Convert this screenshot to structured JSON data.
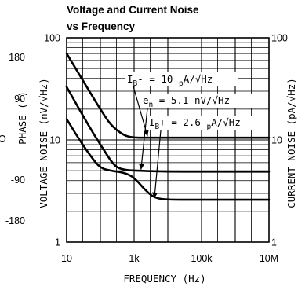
{
  "chart_data": {
    "type": "line",
    "title_line1": "Voltage and Current Noise",
    "title_line2": "vs Frequency",
    "xlabel": "FREQUENCY (Hz)",
    "ylabel_left": "VOLTAGE NOISE (nV/√Hz)",
    "ylabel_right": "CURRENT NOISE (pA/√Hz)",
    "x_scale": "log",
    "y_scale": "log",
    "xlim": [
      10,
      10000000
    ],
    "ylim": [
      1,
      100
    ],
    "grid": true,
    "x_ticks": [
      {
        "value": 10,
        "label": "10"
      },
      {
        "value": 1000,
        "label": "1k"
      },
      {
        "value": 100000,
        "label": "100k"
      },
      {
        "value": 10000000,
        "label": "10M"
      }
    ],
    "y_ticks_left": [
      {
        "value": 1,
        "label": "1"
      },
      {
        "value": 10,
        "label": "10"
      },
      {
        "value": 100,
        "label": "100"
      }
    ],
    "y_ticks_right": [
      {
        "value": 1,
        "label": "1"
      },
      {
        "value": 10,
        "label": "10"
      },
      {
        "value": 100,
        "label": "100"
      }
    ],
    "series": [
      {
        "x": [
          10,
          20,
          50,
          100,
          200,
          500,
          1000,
          2000,
          10000,
          100000,
          10000000
        ],
        "y": [
          70,
          48,
          29,
          20,
          14,
          11,
          10.5,
          10.5,
          10.5,
          10.5,
          10.5
        ]
      },
      {
        "x": [
          10,
          20,
          50,
          100,
          200,
          300,
          500,
          1000,
          10000,
          100000,
          10000000
        ],
        "y": [
          33,
          22,
          13,
          9,
          6.3,
          5.4,
          5.1,
          5.0,
          4.9,
          4.9,
          4.9
        ]
      },
      {
        "x": [
          10,
          20,
          50,
          100,
          200,
          500,
          1000,
          2000,
          4000,
          10000,
          100000,
          10000000
        ],
        "y": [
          16,
          11,
          7,
          5.3,
          5.0,
          4.8,
          4.3,
          3.3,
          2.7,
          2.6,
          2.6,
          2.6
        ]
      }
    ],
    "annotations": [
      {
        "main": "I",
        "sub": "B",
        "rest": "- = 10 ",
        "unit_sub": "p",
        "unit": "A/√Hz"
      },
      {
        "main": "e",
        "sub": "n",
        "rest": " = 5.1 nV/√Hz",
        "unit_sub": "",
        "unit": ""
      },
      {
        "main": "I",
        "sub": "B",
        "rest": "+ = 2.6 ",
        "unit_sub": "p",
        "unit": "A/√Hz"
      }
    ],
    "left_edge_labels": [
      "180",
      "90",
      "0",
      "-90",
      "-180"
    ],
    "left_edge_axis_label": "PHASE (°)",
    "left_edge_axis_fragment": "O"
  }
}
